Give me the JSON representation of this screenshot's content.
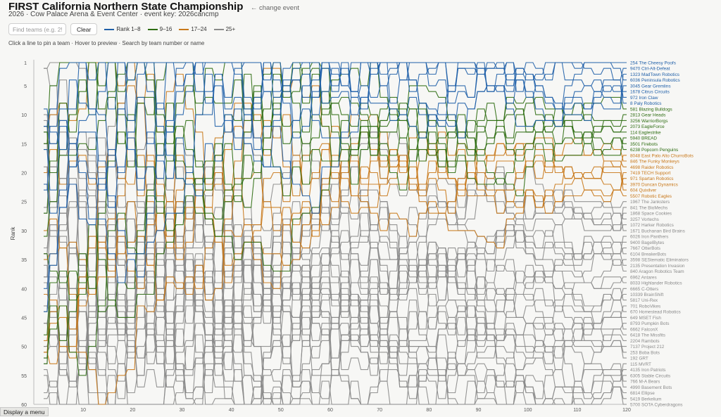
{
  "header": {
    "title": "FIRST California Northern State Championship",
    "change_event": "← change event",
    "subtitle": "2026 · Cow Palace Arena & Event Center · event key: 2026cancmp"
  },
  "controls": {
    "search_placeholder": "Find teams (e.g. 254)",
    "clear_label": "Clear"
  },
  "legend": [
    {
      "label": "Rank 1–8",
      "color": "#1f5fa8"
    },
    {
      "label": "9–16",
      "color": "#2e6d12"
    },
    {
      "label": "17–24",
      "color": "#c8781a"
    },
    {
      "label": "25+",
      "color": "#8a8a8a"
    }
  ],
  "hint": "Click a line to pin a team · Hover to preview · Search by team number or name",
  "footer": {
    "menu_label": "Display a menu"
  },
  "chart_data": {
    "type": "line",
    "ylabel": "Rank",
    "xlabel": "",
    "x_ticks": [
      10,
      20,
      30,
      40,
      50,
      60,
      70,
      80,
      90,
      100,
      110,
      120
    ],
    "y_ticks": [
      1,
      5,
      10,
      15,
      20,
      25,
      30,
      35,
      40,
      45,
      50,
      55,
      60
    ],
    "xlim": [
      0,
      120
    ],
    "ylim": [
      1,
      60
    ],
    "y_inverted": true,
    "series_note": "",
    "final_ranking": [
      {
        "rank": 1,
        "label": "254 The Cheesy Poofs"
      },
      {
        "rank": 2,
        "label": "9470 Ctrl-Alt-Defeat"
      },
      {
        "rank": 3,
        "label": "1323 MadTown Robotics"
      },
      {
        "rank": 4,
        "label": "6036 Peninsula Robotics"
      },
      {
        "rank": 5,
        "label": "3045 Gear Gremlins"
      },
      {
        "rank": 6,
        "label": "1678 Citrus Circuits"
      },
      {
        "rank": 7,
        "label": "972 Iron Claw"
      },
      {
        "rank": 8,
        "label": "8 Paly Robotics"
      },
      {
        "rank": 9,
        "label": "581 Blazing Bulldogs"
      },
      {
        "rank": 10,
        "label": "2813 Gear Heads"
      },
      {
        "rank": 11,
        "label": "3256 WarriorBorgs"
      },
      {
        "rank": 12,
        "label": "2073 EagleForce"
      },
      {
        "rank": 13,
        "label": "114 Eaglestrike"
      },
      {
        "rank": 14,
        "label": "5940 BREAD"
      },
      {
        "rank": 15,
        "label": "3501 Firebots"
      },
      {
        "rank": 16,
        "label": "6238 Popcorn Penguins"
      },
      {
        "rank": 17,
        "label": "8048 East Palo Alto ChurroBots"
      },
      {
        "rank": 18,
        "label": "846 The Funky Monkeys"
      },
      {
        "rank": 19,
        "label": "4698 Raider Robotics"
      },
      {
        "rank": 20,
        "label": "7419 TECH Support"
      },
      {
        "rank": 21,
        "label": "971 Spartan Robotics"
      },
      {
        "rank": 22,
        "label": "3970 Duncan Dynamics"
      },
      {
        "rank": 23,
        "label": "604 Quixilver"
      },
      {
        "rank": 24,
        "label": "5507 Robotic Eagles"
      },
      {
        "rank": 25,
        "label": "1967 The Janksters"
      },
      {
        "rank": 26,
        "label": "841 The BioMechs"
      },
      {
        "rank": 27,
        "label": "1868 Space Cookies"
      },
      {
        "rank": 28,
        "label": "3257 Vortechs"
      },
      {
        "rank": 29,
        "label": "1072 Harker Robotics"
      },
      {
        "rank": 30,
        "label": "1671 Buchanan Bird Brains"
      },
      {
        "rank": 31,
        "label": "6026 Iron Panthers"
      },
      {
        "rank": 32,
        "label": "9400 BagelBytes"
      },
      {
        "rank": 33,
        "label": "7667 OtterBots"
      },
      {
        "rank": 34,
        "label": "6104 BreakerBots"
      },
      {
        "rank": 35,
        "label": "3598 SEStematic Eliminators"
      },
      {
        "rank": 36,
        "label": "2135 Presentation Invasion"
      },
      {
        "rank": 37,
        "label": "840 Aragon Robotics Team"
      },
      {
        "rank": 38,
        "label": "6962 Antares"
      },
      {
        "rank": 39,
        "label": "8033 Highlander Robotics"
      },
      {
        "rank": 40,
        "label": "6665 C-Otters"
      },
      {
        "rank": 41,
        "label": "10339 BrainShift"
      },
      {
        "rank": 42,
        "label": "5817 Uni-Rex"
      },
      {
        "rank": 43,
        "label": "701 RoboVikes"
      },
      {
        "rank": 44,
        "label": "670 Homestead Robotics"
      },
      {
        "rank": 45,
        "label": "649 MSET Fish"
      },
      {
        "rank": 46,
        "label": "8793 Pumpkin Bots"
      },
      {
        "rank": 47,
        "label": "6662 FalconX"
      },
      {
        "rank": 48,
        "label": "6418 The Missfits"
      },
      {
        "rank": 49,
        "label": "2204 Rambots"
      },
      {
        "rank": 50,
        "label": "7137 Project 212"
      },
      {
        "rank": 51,
        "label": "253 Boba Bots"
      },
      {
        "rank": 52,
        "label": "192 GRT"
      },
      {
        "rank": 53,
        "label": "115 MVRT"
      },
      {
        "rank": 54,
        "label": "4135 Iron Patriots"
      },
      {
        "rank": 55,
        "label": "6305 Stable Circuits"
      },
      {
        "rank": 56,
        "label": "766 M-A Bears"
      },
      {
        "rank": 57,
        "label": "4990 Basement Bots"
      },
      {
        "rank": 58,
        "label": "6814 Ellipse"
      },
      {
        "rank": 59,
        "label": "5419 Berkelium"
      },
      {
        "rank": 60,
        "label": "5700 SOTA Cyberdragons"
      }
    ]
  }
}
